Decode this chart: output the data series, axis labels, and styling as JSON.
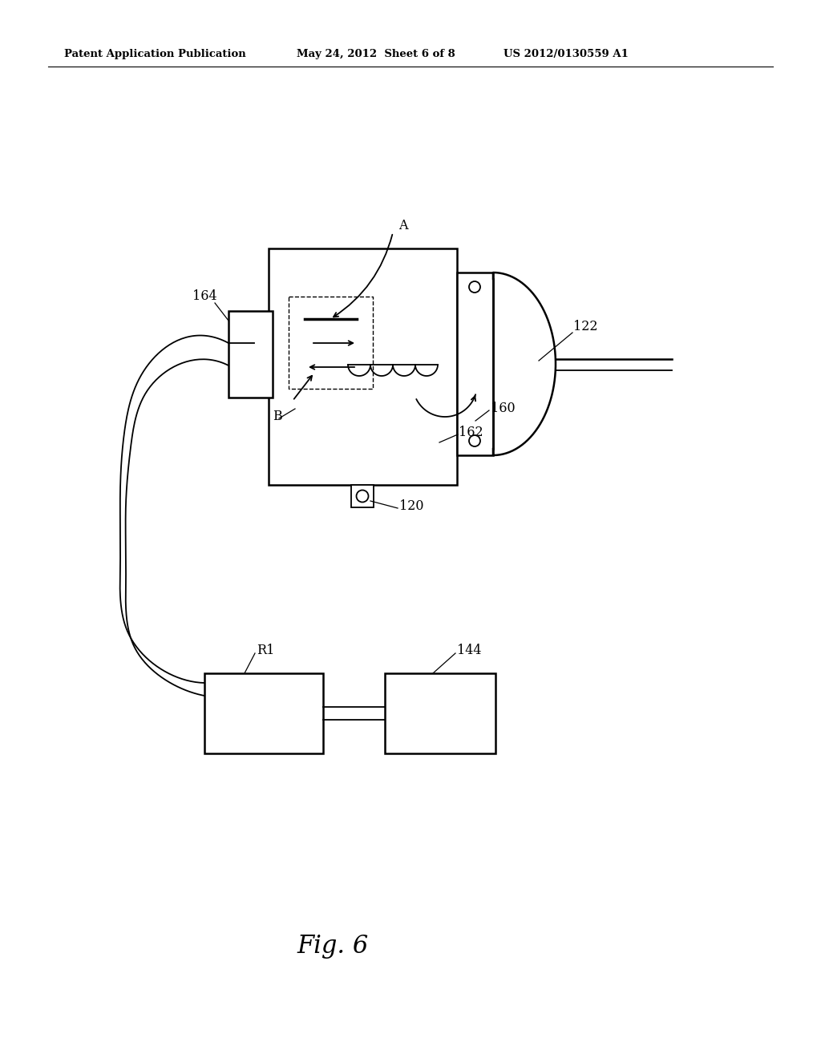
{
  "bg_color": "#ffffff",
  "header_left": "Patent Application Publication",
  "header_mid": "May 24, 2012  Sheet 6 of 8",
  "header_right": "US 2012/0130559 A1",
  "fig_label": "Fig. 6",
  "lw_thick": 1.8,
  "lw_main": 1.3,
  "lw_thin": 0.9
}
